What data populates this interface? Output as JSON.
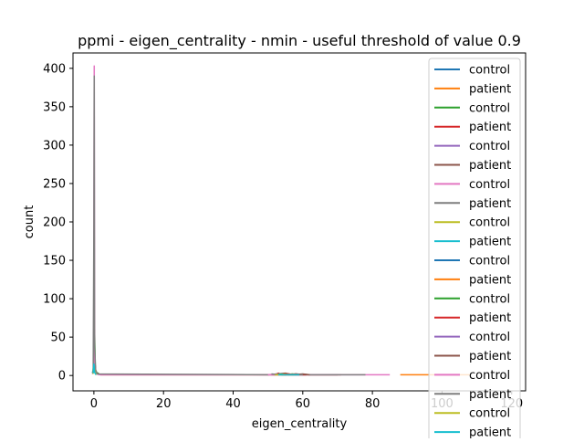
{
  "chart_data": {
    "type": "line",
    "title": "ppmi - eigen_centrality - nmin - useful threshold of value 0.9",
    "xlabel": "eigen_centrality",
    "ylabel": "count",
    "xlim": [
      -6,
      124
    ],
    "ylim": [
      -20,
      420
    ],
    "x_ticks": [
      0,
      20,
      40,
      60,
      80,
      100,
      120
    ],
    "y_ticks": [
      0,
      50,
      100,
      150,
      200,
      250,
      300,
      350,
      400
    ],
    "grid": false,
    "legend_position": "upper-right",
    "series": [
      {
        "name": "control",
        "color": "#1f77b4",
        "points": [
          [
            -0.5,
            4
          ],
          [
            -0.1,
            6
          ],
          [
            0.1,
            30
          ],
          [
            0.3,
            5
          ],
          [
            0.6,
            2
          ],
          [
            1.2,
            3
          ]
        ]
      },
      {
        "name": "patient",
        "color": "#ff7f0e",
        "points": [
          [
            88,
            1
          ],
          [
            92,
            1
          ],
          [
            96,
            1
          ],
          [
            100,
            1
          ],
          [
            104,
            1
          ],
          [
            108,
            1
          ]
        ]
      },
      {
        "name": "control",
        "color": "#2ca02c",
        "points": [
          [
            -0.3,
            3
          ],
          [
            0.0,
            20
          ],
          [
            0.2,
            60
          ],
          [
            0.4,
            8
          ],
          [
            0.8,
            4
          ],
          [
            1.5,
            2
          ]
        ]
      },
      {
        "name": "patient",
        "color": "#d62728",
        "points": [
          [
            -0.2,
            3
          ],
          [
            0.0,
            40
          ],
          [
            0.1,
            100
          ],
          [
            0.2,
            20
          ],
          [
            0.6,
            4
          ],
          [
            1.2,
            2
          ],
          [
            2,
            1
          ],
          [
            3,
            1
          ],
          [
            22,
            1
          ],
          [
            52,
            1
          ],
          [
            53,
            3
          ],
          [
            54,
            1
          ],
          [
            55,
            2
          ],
          [
            56,
            1
          ],
          [
            58,
            2
          ],
          [
            60,
            1
          ],
          [
            63,
            1
          ],
          [
            66,
            1
          ],
          [
            71,
            1
          ]
        ]
      },
      {
        "name": "control",
        "color": "#9467bd",
        "points": [
          [
            -0.4,
            2
          ],
          [
            0.0,
            10
          ],
          [
            0.2,
            25
          ],
          [
            0.5,
            5
          ],
          [
            1.0,
            2
          ]
        ]
      },
      {
        "name": "patient",
        "color": "#8c564b",
        "points": [
          [
            50,
            1
          ],
          [
            53,
            2
          ],
          [
            55,
            3
          ],
          [
            57,
            1
          ],
          [
            60,
            2
          ],
          [
            62,
            1
          ],
          [
            66,
            1
          ],
          [
            70,
            1
          ]
        ]
      },
      {
        "name": "control",
        "color": "#e377c2",
        "points": [
          [
            -0.1,
            5
          ],
          [
            0.0,
            150
          ],
          [
            0.1,
            403
          ],
          [
            0.2,
            30
          ],
          [
            0.4,
            4
          ],
          [
            0.8,
            2
          ],
          [
            1.5,
            1
          ],
          [
            60,
            1
          ],
          [
            66,
            1
          ],
          [
            72,
            1
          ],
          [
            78,
            1
          ],
          [
            85,
            1
          ]
        ]
      },
      {
        "name": "patient",
        "color": "#7f7f7f",
        "points": [
          [
            -0.2,
            4
          ],
          [
            0.0,
            200
          ],
          [
            0.1,
            390
          ],
          [
            0.2,
            40
          ],
          [
            0.5,
            6
          ],
          [
            1.0,
            2
          ],
          [
            49,
            1
          ],
          [
            52,
            1
          ],
          [
            55,
            1
          ],
          [
            58,
            1
          ],
          [
            62,
            1
          ],
          [
            66,
            1
          ],
          [
            70,
            1
          ],
          [
            78,
            1
          ]
        ]
      },
      {
        "name": "control",
        "color": "#bcbd22",
        "points": [
          [
            -0.3,
            2
          ],
          [
            0.0,
            12
          ],
          [
            0.3,
            4
          ],
          [
            0.7,
            1
          ]
        ]
      },
      {
        "name": "patient",
        "color": "#17becf",
        "points": [
          [
            -0.2,
            3
          ],
          [
            0.0,
            15
          ],
          [
            0.2,
            4
          ],
          [
            0.6,
            1
          ]
        ]
      },
      {
        "name": "control",
        "color": "#1f77b4",
        "points": [
          [
            52,
            1
          ],
          [
            54,
            2
          ],
          [
            56,
            1
          ],
          [
            58,
            1
          ]
        ]
      },
      {
        "name": "patient",
        "color": "#ff7f0e",
        "points": [
          [
            51,
            1
          ],
          [
            53,
            1
          ],
          [
            55,
            2
          ],
          [
            57,
            1
          ]
        ]
      },
      {
        "name": "control",
        "color": "#2ca02c",
        "points": [
          [
            53,
            2
          ],
          [
            55,
            1
          ],
          [
            57,
            2
          ],
          [
            59,
            1
          ]
        ]
      },
      {
        "name": "patient",
        "color": "#d62728",
        "points": [
          [
            54,
            1
          ],
          [
            56,
            2
          ],
          [
            58,
            1
          ],
          [
            61,
            1
          ]
        ]
      },
      {
        "name": "control",
        "color": "#9467bd",
        "points": [
          [
            52,
            2
          ],
          [
            54,
            1
          ],
          [
            57,
            1
          ],
          [
            60,
            1
          ]
        ]
      },
      {
        "name": "patient",
        "color": "#8c564b",
        "points": [
          [
            53,
            1
          ],
          [
            55,
            1
          ],
          [
            58,
            2
          ],
          [
            62,
            1
          ]
        ]
      },
      {
        "name": "control",
        "color": "#e377c2",
        "points": [
          [
            50,
            1
          ],
          [
            53,
            1
          ],
          [
            56,
            1
          ],
          [
            59,
            1
          ]
        ]
      },
      {
        "name": "patient",
        "color": "#7f7f7f",
        "points": [
          [
            51,
            2
          ],
          [
            54,
            1
          ],
          [
            57,
            1
          ],
          [
            60,
            1
          ]
        ]
      },
      {
        "name": "control",
        "color": "#bcbd22",
        "points": [
          [
            52,
            1
          ],
          [
            55,
            1
          ],
          [
            58,
            1
          ]
        ]
      },
      {
        "name": "patient",
        "color": "#17becf",
        "points": [
          [
            53,
            1
          ],
          [
            56,
            1
          ],
          [
            59,
            1
          ]
        ]
      }
    ]
  }
}
